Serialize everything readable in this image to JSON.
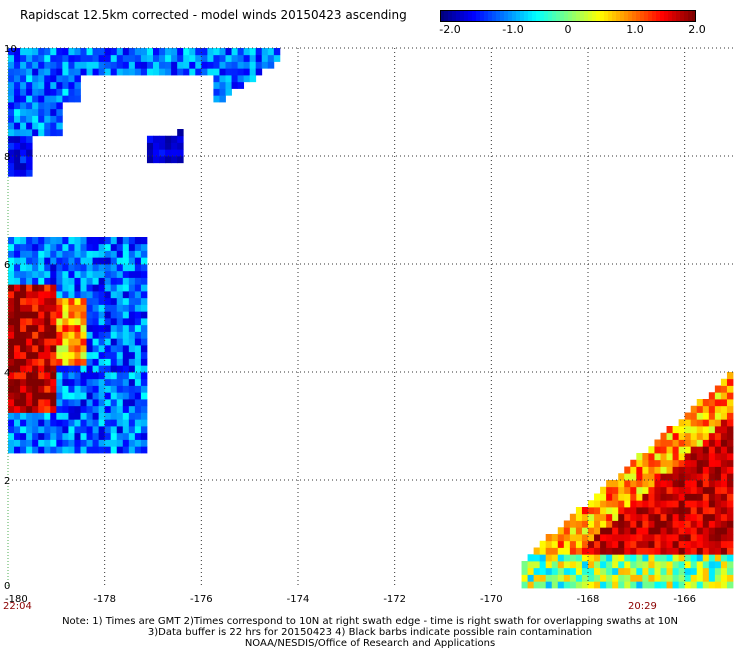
{
  "title": "Rapidscat 12.5km corrected - model winds 20150423 ascending",
  "colorbar": {
    "ticks": [
      "-2.0",
      "-1.0",
      "0",
      "1.0",
      "2.0"
    ],
    "tick_values": [
      -2.0,
      -1.0,
      0,
      1.0,
      2.0
    ],
    "range": [
      -2.0,
      2.0
    ],
    "colors": [
      "#00007f",
      "#0000ff",
      "#007fff",
      "#00ffff",
      "#7fff7f",
      "#ffff00",
      "#ff7f00",
      "#ff0000",
      "#7f0000"
    ]
  },
  "axes": {
    "x_ticks": [
      "-180",
      "-178",
      "-176",
      "-174",
      "-172",
      "-170",
      "-168",
      "-166"
    ],
    "x_values": [
      -180,
      -178,
      -176,
      -174,
      -172,
      -170,
      -168,
      -166
    ],
    "y_ticks": [
      "0",
      "2",
      "4",
      "6",
      "8",
      "10"
    ],
    "y_values": [
      0,
      2,
      4,
      6,
      8,
      10
    ],
    "xlim": [
      -180,
      -165
    ],
    "ylim": [
      0,
      10
    ],
    "grid": true,
    "grid_style": "dotted"
  },
  "swath_times": {
    "left": "22:04",
    "right": "20:29"
  },
  "notes": {
    "line1": "Note: 1) Times are GMT 2)Times correspond to 10N at right swath edge - time is right swath for overlapping swaths at 10N",
    "line2": "3)Data buffer is 22 hrs for 20150423 4) Black barbs indicate possible rain contamination",
    "line3": "NOAA/NESDIS/Office of Research and Applications"
  }
}
